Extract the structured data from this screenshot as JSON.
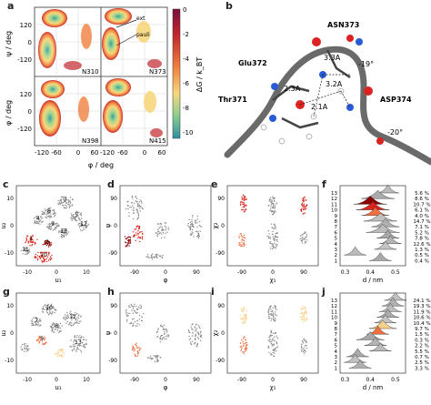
{
  "panels": {
    "a": "a",
    "b": "b",
    "c": "c",
    "d": "d",
    "e": "e",
    "f": "f",
    "g": "g",
    "h": "h",
    "i": "i",
    "j": "j"
  },
  "panel_a": {
    "ylabel_top": "ψ / deg",
    "ylabel_bottom": "φ / deg",
    "xlabel": "φ / deg",
    "subplots": [
      "N310",
      "N373",
      "N398",
      "N415"
    ],
    "annotations": [
      "ext",
      "pauli"
    ],
    "yticks": [
      "120",
      "60",
      "0",
      "-60",
      "-120"
    ],
    "xticks": [
      "-120",
      "-60",
      "0",
      "60",
      "120"
    ],
    "colorbar_label": "ΔG / k_BT",
    "colorbar_ticks": [
      "0",
      "-2",
      "-4",
      "-6",
      "-8",
      "-10"
    ]
  },
  "panel_b": {
    "residues": [
      "ASN373",
      "Glu372",
      "Thr371",
      "ASP374"
    ],
    "distances": [
      "3.3A",
      "3.2A",
      "2.3A",
      "2.1A"
    ],
    "angles": [
      "-19°",
      "-20°"
    ]
  },
  "panel_c": {
    "xlabel": "u₁",
    "ylabel": "u₂",
    "cluster_labels": [
      "7",
      "8",
      "5",
      "12",
      "9",
      "13",
      "4",
      "1",
      "3",
      "10",
      "11"
    ],
    "xticks": [
      "-10",
      "0",
      "10"
    ],
    "yticks": [
      "10",
      "0",
      "-10"
    ]
  },
  "panel_d": {
    "xlabel": "φ",
    "ylabel": "ψ",
    "xticks": [
      "-90",
      "0",
      "90"
    ],
    "yticks": [
      "90",
      "0",
      "-90"
    ]
  },
  "panel_e": {
    "xlabel": "χ₁",
    "ylabel": "χ₂",
    "xticks": [
      "-90",
      "0",
      "90"
    ],
    "yticks": [
      "90",
      "0",
      "-90"
    ]
  },
  "panel_f": {
    "xlabel": "d / nm",
    "xticks": [
      "0.3",
      "0.4",
      "0.5"
    ],
    "rows": [
      "13",
      "12",
      "11",
      "10",
      "9",
      "8",
      "7",
      "6",
      "5",
      "4",
      "3",
      "2",
      "1"
    ],
    "percents": [
      "5.6 %",
      "8.6 %",
      "10.7 %",
      "6.1 %",
      "4.0 %",
      "14.7 %",
      "7.1 %",
      "5.2 %",
      "7.8 %",
      "12.6 %",
      "1.3 %",
      "0.5 %",
      "0.4 %"
    ]
  },
  "panel_g": {
    "xlabel": "u₁",
    "ylabel": "u₂",
    "cluster_labels": [
      "10",
      "12",
      "7",
      "8",
      "9",
      "13"
    ],
    "xticks": [
      "-10",
      "0",
      "10"
    ],
    "yticks": [
      "10",
      "0",
      "-10"
    ]
  },
  "panel_h": {
    "xlabel": "φ",
    "ylabel": "ψ",
    "xticks": [
      "-90",
      "0",
      "90"
    ],
    "yticks": [
      "90",
      "0",
      "-90"
    ]
  },
  "panel_i": {
    "xlabel": "χ₁",
    "ylabel": "χ₂",
    "xticks": [
      "-90",
      "0",
      "90"
    ],
    "yticks": [
      "90",
      "0",
      "-90"
    ]
  },
  "panel_j": {
    "xlabel": "d / nm",
    "xticks": [
      "0.3",
      "0.4",
      "0.5"
    ],
    "rows": [
      "13",
      "12",
      "11",
      "10",
      "9",
      "8",
      "7",
      "6",
      "5",
      "4",
      "3",
      "2",
      "1"
    ],
    "percents": [
      "24.1 %",
      "19.3 %",
      "11.9 %",
      "10.6 %",
      "10.4 %",
      "9.7 %",
      "1.5 %",
      "0.3 %",
      "2.2 %",
      "5.5 %",
      "0.7 %",
      "2.5 %",
      "3.3 %"
    ]
  },
  "colors": {
    "gray": "#8a8a8a",
    "dark_red": "#8b0000",
    "red": "#d9261c",
    "orange": "#f07040",
    "light": "#fbd08a"
  }
}
